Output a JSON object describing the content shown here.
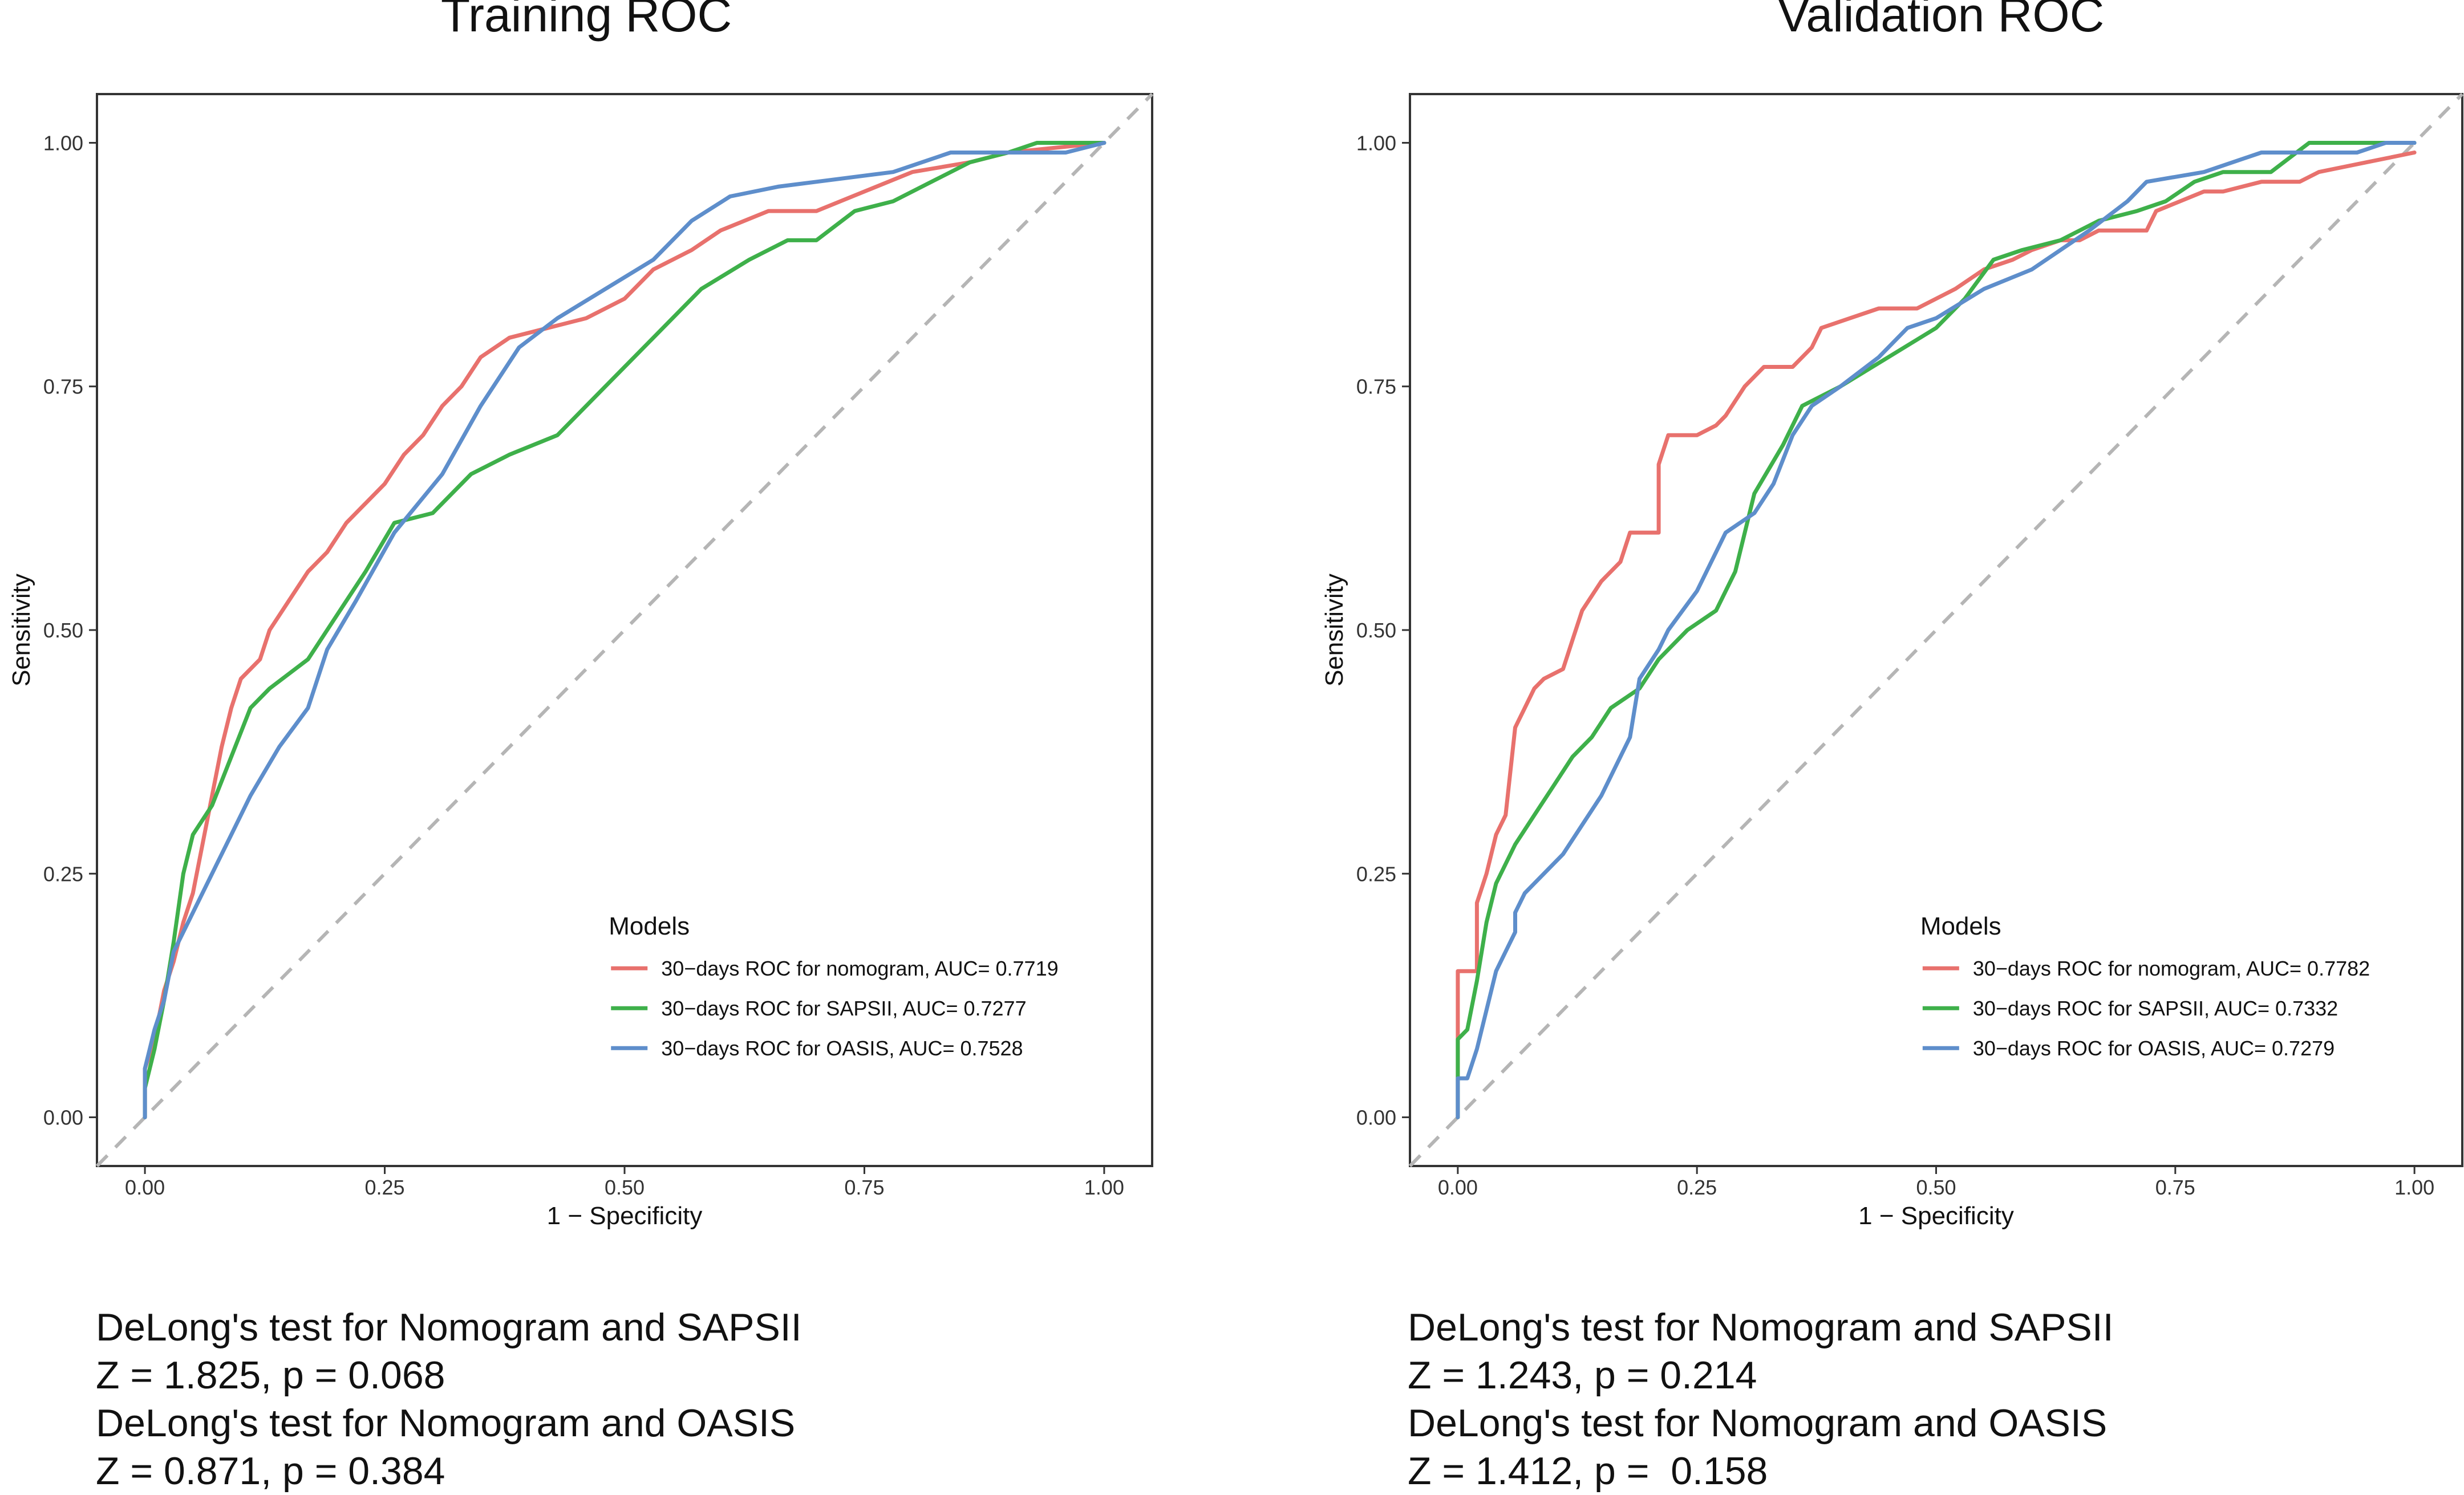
{
  "chart_data": [
    {
      "type": "line",
      "title": "Training ROC",
      "xlabel": "1 − Specificity",
      "ylabel": "Sensitivity",
      "xlim": [
        0,
        1
      ],
      "ylim": [
        0,
        1
      ],
      "xticks": [
        "0.00",
        "0.25",
        "0.50",
        "0.75",
        "1.00"
      ],
      "yticks": [
        "0.00",
        "0.25",
        "0.50",
        "0.75",
        "1.00"
      ],
      "legend_title": "Models",
      "legend_position": "bottom-right",
      "diagonal_reference": true,
      "series": [
        {
          "name": "30−days ROC for nomogram, AUC= 0.7719",
          "color": "#E8716D",
          "points": [
            [
              0,
              0
            ],
            [
              0,
              0.05
            ],
            [
              0.01,
              0.08
            ],
            [
              0.02,
              0.13
            ],
            [
              0.03,
              0.16
            ],
            [
              0.04,
              0.2
            ],
            [
              0.05,
              0.23
            ],
            [
              0.06,
              0.28
            ],
            [
              0.07,
              0.33
            ],
            [
              0.08,
              0.38
            ],
            [
              0.09,
              0.42
            ],
            [
              0.1,
              0.45
            ],
            [
              0.12,
              0.47
            ],
            [
              0.13,
              0.5
            ],
            [
              0.15,
              0.53
            ],
            [
              0.17,
              0.56
            ],
            [
              0.19,
              0.58
            ],
            [
              0.21,
              0.61
            ],
            [
              0.23,
              0.63
            ],
            [
              0.25,
              0.65
            ],
            [
              0.27,
              0.68
            ],
            [
              0.29,
              0.7
            ],
            [
              0.31,
              0.73
            ],
            [
              0.33,
              0.75
            ],
            [
              0.35,
              0.78
            ],
            [
              0.38,
              0.8
            ],
            [
              0.42,
              0.81
            ],
            [
              0.46,
              0.82
            ],
            [
              0.5,
              0.84
            ],
            [
              0.53,
              0.87
            ],
            [
              0.57,
              0.89
            ],
            [
              0.6,
              0.91
            ],
            [
              0.65,
              0.93
            ],
            [
              0.7,
              0.93
            ],
            [
              0.75,
              0.95
            ],
            [
              0.8,
              0.97
            ],
            [
              0.86,
              0.98
            ],
            [
              0.9,
              0.99
            ],
            [
              0.95,
              0.995
            ],
            [
              1,
              1
            ]
          ]
        },
        {
          "name": "30−days ROC for SAPSII, AUC= 0.7277",
          "color": "#3EB04A",
          "points": [
            [
              0,
              0
            ],
            [
              0,
              0.03
            ],
            [
              0.01,
              0.07
            ],
            [
              0.02,
              0.12
            ],
            [
              0.03,
              0.18
            ],
            [
              0.04,
              0.25
            ],
            [
              0.05,
              0.29
            ],
            [
              0.07,
              0.32
            ],
            [
              0.09,
              0.37
            ],
            [
              0.11,
              0.42
            ],
            [
              0.13,
              0.44
            ],
            [
              0.17,
              0.47
            ],
            [
              0.19,
              0.5
            ],
            [
              0.21,
              0.53
            ],
            [
              0.23,
              0.56
            ],
            [
              0.26,
              0.61
            ],
            [
              0.3,
              0.62
            ],
            [
              0.34,
              0.66
            ],
            [
              0.38,
              0.68
            ],
            [
              0.43,
              0.7
            ],
            [
              0.48,
              0.75
            ],
            [
              0.53,
              0.8
            ],
            [
              0.58,
              0.85
            ],
            [
              0.63,
              0.88
            ],
            [
              0.67,
              0.9
            ],
            [
              0.7,
              0.9
            ],
            [
              0.74,
              0.93
            ],
            [
              0.78,
              0.94
            ],
            [
              0.82,
              0.96
            ],
            [
              0.86,
              0.98
            ],
            [
              0.9,
              0.99
            ],
            [
              0.93,
              1
            ],
            [
              1,
              1
            ]
          ]
        },
        {
          "name": "30−days ROC for OASIS, AUC= 0.7528",
          "color": "#5E8ECB",
          "points": [
            [
              0,
              0
            ],
            [
              0,
              0.05
            ],
            [
              0.01,
              0.09
            ],
            [
              0.02,
              0.12
            ],
            [
              0.03,
              0.17
            ],
            [
              0.05,
              0.21
            ],
            [
              0.07,
              0.25
            ],
            [
              0.09,
              0.29
            ],
            [
              0.11,
              0.33
            ],
            [
              0.14,
              0.38
            ],
            [
              0.17,
              0.42
            ],
            [
              0.19,
              0.48
            ],
            [
              0.22,
              0.53
            ],
            [
              0.26,
              0.6
            ],
            [
              0.31,
              0.66
            ],
            [
              0.35,
              0.73
            ],
            [
              0.39,
              0.79
            ],
            [
              0.43,
              0.82
            ],
            [
              0.48,
              0.85
            ],
            [
              0.53,
              0.88
            ],
            [
              0.57,
              0.92
            ],
            [
              0.61,
              0.945
            ],
            [
              0.66,
              0.955
            ],
            [
              0.7,
              0.96
            ],
            [
              0.78,
              0.97
            ],
            [
              0.84,
              0.99
            ],
            [
              0.9,
              0.99
            ],
            [
              0.96,
              0.99
            ],
            [
              1,
              1
            ]
          ]
        }
      ]
    },
    {
      "type": "line",
      "title": "Validation ROC",
      "xlabel": "1 − Specificity",
      "ylabel": "Sensitivity",
      "xlim": [
        0,
        1
      ],
      "ylim": [
        0,
        1
      ],
      "xticks": [
        "0.00",
        "0.25",
        "0.50",
        "0.75",
        "1.00"
      ],
      "yticks": [
        "0.00",
        "0.25",
        "0.50",
        "0.75",
        "1.00"
      ],
      "legend_title": "Models",
      "legend_position": "bottom-right",
      "diagonal_reference": true,
      "series": [
        {
          "name": "30−days ROC for nomogram, AUC= 0.7782",
          "color": "#E8716D",
          "points": [
            [
              0,
              0
            ],
            [
              0,
              0.15
            ],
            [
              0.02,
              0.15
            ],
            [
              0.02,
              0.22
            ],
            [
              0.03,
              0.25
            ],
            [
              0.04,
              0.29
            ],
            [
              0.05,
              0.31
            ],
            [
              0.06,
              0.4
            ],
            [
              0.07,
              0.42
            ],
            [
              0.08,
              0.44
            ],
            [
              0.09,
              0.45
            ],
            [
              0.11,
              0.46
            ],
            [
              0.12,
              0.49
            ],
            [
              0.13,
              0.52
            ],
            [
              0.15,
              0.55
            ],
            [
              0.17,
              0.57
            ],
            [
              0.18,
              0.6
            ],
            [
              0.21,
              0.6
            ],
            [
              0.21,
              0.67
            ],
            [
              0.22,
              0.7
            ],
            [
              0.25,
              0.7
            ],
            [
              0.27,
              0.71
            ],
            [
              0.28,
              0.72
            ],
            [
              0.3,
              0.75
            ],
            [
              0.32,
              0.77
            ],
            [
              0.35,
              0.77
            ],
            [
              0.37,
              0.79
            ],
            [
              0.38,
              0.81
            ],
            [
              0.41,
              0.82
            ],
            [
              0.44,
              0.83
            ],
            [
              0.48,
              0.83
            ],
            [
              0.52,
              0.85
            ],
            [
              0.55,
              0.87
            ],
            [
              0.58,
              0.88
            ],
            [
              0.6,
              0.89
            ],
            [
              0.63,
              0.9
            ],
            [
              0.65,
              0.9
            ],
            [
              0.67,
              0.91
            ],
            [
              0.72,
              0.91
            ],
            [
              0.73,
              0.93
            ],
            [
              0.78,
              0.95
            ],
            [
              0.8,
              0.95
            ],
            [
              0.84,
              0.96
            ],
            [
              0.88,
              0.96
            ],
            [
              0.9,
              0.97
            ],
            [
              0.95,
              0.98
            ],
            [
              1,
              0.99
            ]
          ]
        },
        {
          "name": "30−days ROC for SAPSII, AUC= 0.7332",
          "color": "#3EB04A",
          "points": [
            [
              0,
              0
            ],
            [
              0,
              0.08
            ],
            [
              0.01,
              0.09
            ],
            [
              0.02,
              0.14
            ],
            [
              0.03,
              0.2
            ],
            [
              0.04,
              0.24
            ],
            [
              0.06,
              0.28
            ],
            [
              0.08,
              0.31
            ],
            [
              0.1,
              0.34
            ],
            [
              0.12,
              0.37
            ],
            [
              0.14,
              0.39
            ],
            [
              0.16,
              0.42
            ],
            [
              0.19,
              0.44
            ],
            [
              0.21,
              0.47
            ],
            [
              0.24,
              0.5
            ],
            [
              0.27,
              0.52
            ],
            [
              0.29,
              0.56
            ],
            [
              0.31,
              0.64
            ],
            [
              0.34,
              0.69
            ],
            [
              0.36,
              0.73
            ],
            [
              0.4,
              0.75
            ],
            [
              0.45,
              0.78
            ],
            [
              0.5,
              0.81
            ],
            [
              0.53,
              0.84
            ],
            [
              0.56,
              0.88
            ],
            [
              0.59,
              0.89
            ],
            [
              0.63,
              0.9
            ],
            [
              0.67,
              0.92
            ],
            [
              0.71,
              0.93
            ],
            [
              0.74,
              0.94
            ],
            [
              0.77,
              0.96
            ],
            [
              0.8,
              0.97
            ],
            [
              0.85,
              0.97
            ],
            [
              0.89,
              1
            ],
            [
              1,
              1
            ]
          ]
        },
        {
          "name": "30−days ROC for OASIS, AUC= 0.7279",
          "color": "#5E8ECB",
          "points": [
            [
              0,
              0
            ],
            [
              0,
              0.04
            ],
            [
              0.01,
              0.04
            ],
            [
              0.02,
              0.07
            ],
            [
              0.03,
              0.11
            ],
            [
              0.04,
              0.15
            ],
            [
              0.05,
              0.17
            ],
            [
              0.06,
              0.19
            ],
            [
              0.06,
              0.21
            ],
            [
              0.07,
              0.23
            ],
            [
              0.08,
              0.24
            ],
            [
              0.11,
              0.27
            ],
            [
              0.13,
              0.3
            ],
            [
              0.15,
              0.33
            ],
            [
              0.17,
              0.37
            ],
            [
              0.18,
              0.39
            ],
            [
              0.19,
              0.45
            ],
            [
              0.21,
              0.48
            ],
            [
              0.22,
              0.5
            ],
            [
              0.25,
              0.54
            ],
            [
              0.28,
              0.6
            ],
            [
              0.31,
              0.62
            ],
            [
              0.33,
              0.65
            ],
            [
              0.35,
              0.7
            ],
            [
              0.37,
              0.73
            ],
            [
              0.4,
              0.75
            ],
            [
              0.44,
              0.78
            ],
            [
              0.47,
              0.81
            ],
            [
              0.5,
              0.82
            ],
            [
              0.55,
              0.85
            ],
            [
              0.6,
              0.87
            ],
            [
              0.66,
              0.91
            ],
            [
              0.7,
              0.94
            ],
            [
              0.72,
              0.96
            ],
            [
              0.78,
              0.97
            ],
            [
              0.84,
              0.99
            ],
            [
              0.88,
              0.99
            ],
            [
              0.94,
              0.99
            ],
            [
              0.97,
              1
            ],
            [
              1,
              1
            ]
          ]
        }
      ]
    }
  ],
  "notes": [
    {
      "line1": "DeLong's test for Nomogram and SAPSII",
      "line2": "Z = 1.825, p = 0.068",
      "line3": "DeLong's test for Nomogram and OASIS",
      "line4": "Z = 0.871, p = 0.384"
    },
    {
      "line1": "DeLong's test for Nomogram and SAPSII",
      "line2": "Z = 1.243, p = 0.214",
      "line3": "DeLong's test for Nomogram and OASIS",
      "line4": "Z = 1.412, p =  0.158"
    }
  ]
}
